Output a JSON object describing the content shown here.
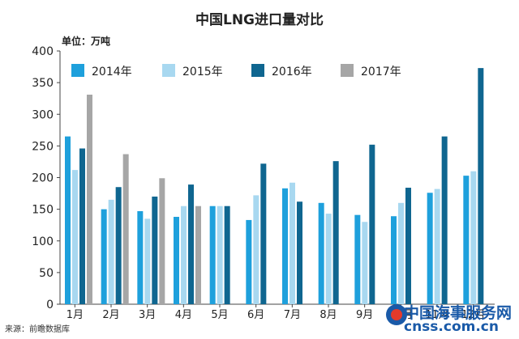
{
  "chart_data": {
    "type": "bar",
    "title": "中国LNG进口量对比",
    "unit_label": "单位：万吨",
    "categories": [
      "1月",
      "2月",
      "3月",
      "4月",
      "5月",
      "6月",
      "7月",
      "8月",
      "9月",
      "10月",
      "11月",
      "12月"
    ],
    "series": [
      {
        "name": "2014年",
        "color": "#1ea0dc",
        "values": [
          265,
          150,
          147,
          138,
          155,
          133,
          183,
          160,
          141,
          139,
          176,
          203
        ]
      },
      {
        "name": "2015年",
        "color": "#a8d8f0",
        "values": [
          212,
          165,
          135,
          155,
          155,
          172,
          192,
          143,
          130,
          160,
          182,
          210
        ]
      },
      {
        "name": "2016年",
        "color": "#0f6690",
        "values": [
          246,
          185,
          170,
          189,
          155,
          222,
          162,
          226,
          252,
          184,
          265,
          373
        ]
      },
      {
        "name": "2017年",
        "color": "#a6a6a6",
        "values": [
          331,
          237,
          199,
          155,
          null,
          null,
          null,
          null,
          null,
          null,
          null,
          null
        ]
      }
    ],
    "ylim": [
      0,
      400
    ],
    "yticks": [
      0,
      50,
      100,
      150,
      200,
      250,
      300,
      350,
      400
    ],
    "legend_position": "top"
  },
  "source": "来源：前瞻数据库",
  "watermark": {
    "line1": "中国海事服务网",
    "line2": "cnss.com.cn"
  }
}
